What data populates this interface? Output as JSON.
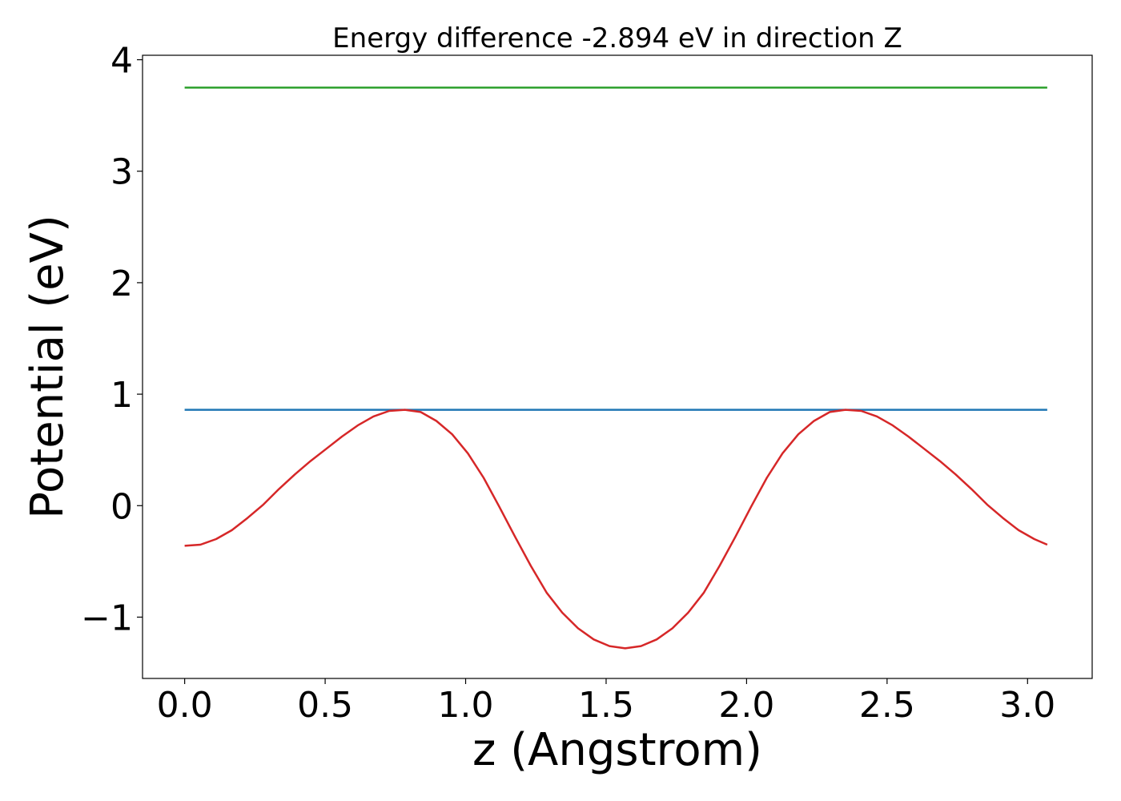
{
  "chart_data": {
    "type": "line",
    "title": "Energy difference -2.894 eV in direction Z",
    "xlabel": "z (Angstrom)",
    "ylabel": "Potential (eV)",
    "xlim": [
      -0.15,
      3.23
    ],
    "ylim": [
      -1.55,
      4.04
    ],
    "xticks": [
      0.0,
      0.5,
      1.0,
      1.5,
      2.0,
      2.5,
      3.0
    ],
    "xtick_labels": [
      "0.0",
      "0.5",
      "1.0",
      "1.5",
      "2.0",
      "2.5",
      "3.0"
    ],
    "yticks": [
      -1,
      0,
      1,
      2,
      3,
      4
    ],
    "ytick_labels": [
      "−1",
      "0",
      "1",
      "2",
      "3",
      "4"
    ],
    "grid": false,
    "legend": "none",
    "series": [
      {
        "color": "#2ca02c",
        "x": [
          0.0,
          3.07
        ],
        "y": [
          3.75,
          3.75
        ]
      },
      {
        "color": "#1f77b4",
        "x": [
          0.0,
          3.07
        ],
        "y": [
          0.86,
          0.86
        ]
      },
      {
        "color": "#d62728",
        "x": [
          0.0,
          0.056,
          0.112,
          0.168,
          0.224,
          0.28,
          0.336,
          0.392,
          0.448,
          0.504,
          0.56,
          0.616,
          0.672,
          0.728,
          0.784,
          0.84,
          0.896,
          0.952,
          1.008,
          1.064,
          1.12,
          1.176,
          1.232,
          1.288,
          1.344,
          1.4,
          1.456,
          1.512,
          1.568,
          1.624,
          1.68,
          1.736,
          1.792,
          1.848,
          1.904,
          1.96,
          2.016,
          2.072,
          2.128,
          2.184,
          2.24,
          2.296,
          2.352,
          2.408,
          2.464,
          2.52,
          2.576,
          2.632,
          2.688,
          2.744,
          2.8,
          2.856,
          2.912,
          2.968,
          3.024,
          3.07
        ],
        "y": [
          -0.36,
          -0.35,
          -0.3,
          -0.22,
          -0.11,
          0.01,
          0.15,
          0.28,
          0.4,
          0.51,
          0.62,
          0.72,
          0.8,
          0.85,
          0.86,
          0.84,
          0.76,
          0.64,
          0.47,
          0.25,
          -0.01,
          -0.28,
          -0.54,
          -0.78,
          -0.96,
          -1.1,
          -1.2,
          -1.26,
          -1.28,
          -1.26,
          -1.2,
          -1.1,
          -0.96,
          -0.78,
          -0.54,
          -0.28,
          -0.01,
          0.25,
          0.47,
          0.64,
          0.76,
          0.84,
          0.86,
          0.85,
          0.8,
          0.72,
          0.62,
          0.51,
          0.4,
          0.28,
          0.15,
          0.01,
          -0.11,
          -0.22,
          -0.3,
          -0.35
        ]
      }
    ]
  }
}
